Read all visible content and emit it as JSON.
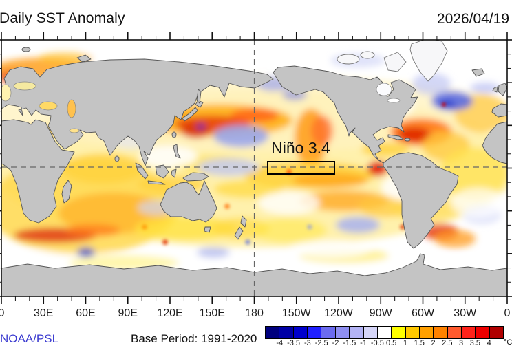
{
  "header": {
    "title": "Daily SST Anomaly",
    "date": "2026/04/19"
  },
  "map": {
    "region_label": "Niño 3.4",
    "gridlines": [
      "equator",
      "date-line-180"
    ],
    "land_color": "#c4c4c4",
    "ocean_base_color": "#ffffff"
  },
  "axis": {
    "lon_labels": [
      "0",
      "30E",
      "60E",
      "90E",
      "120E",
      "150E",
      "180",
      "150W",
      "120W",
      "90W",
      "60W",
      "30W",
      "0"
    ]
  },
  "footer": {
    "credit": "NOAA/PSL",
    "base_period": "Base Period: 1991-2020"
  },
  "colorbar": {
    "unit": "°C",
    "tick_labels": [
      "-4",
      "-3.5",
      "-3",
      "-2.5",
      "-2",
      "-1.5",
      "-1",
      "-0.5",
      "0.5",
      "1",
      "1.5",
      "2",
      "2.5",
      "3",
      "3.5",
      "4"
    ],
    "colors": [
      "#00007e",
      "#0000a6",
      "#0000cd",
      "#2020ff",
      "#6b6bef",
      "#8f8ff2",
      "#b3b3f5",
      "#d5d5f8",
      "#ffffff",
      "#ffff00",
      "#ffc800",
      "#ffa000",
      "#ff8200",
      "#ff5a2d",
      "#ff231a",
      "#ee0000",
      "#b00000"
    ]
  }
}
